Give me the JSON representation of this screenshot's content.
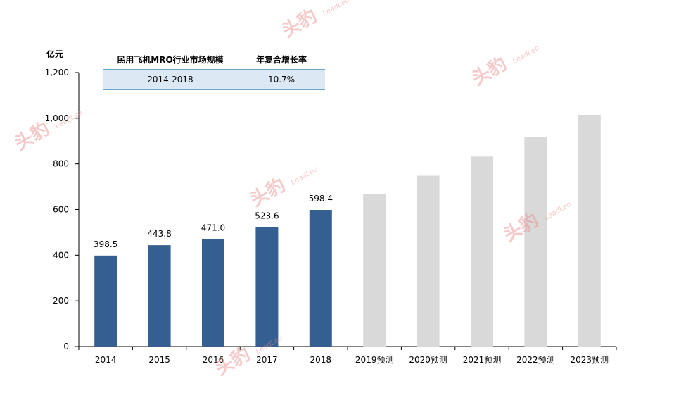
{
  "unit": "亿元",
  "table": {
    "header": [
      "民用飞机MRO行业市场规模",
      "年复合增长率"
    ],
    "row": [
      "2014-2018",
      "10.7%"
    ]
  },
  "watermark": {
    "logo_text": "头豹",
    "brand": "LeadLeo"
  },
  "chart_data": {
    "type": "bar",
    "categories": [
      "2014",
      "2015",
      "2016",
      "2017",
      "2018",
      "2019预测",
      "2020预测",
      "2021预测",
      "2022预测",
      "2023预测"
    ],
    "values": [
      398.5,
      443.8,
      471.0,
      523.6,
      598.4,
      668,
      748,
      832,
      919,
      1015
    ],
    "data_labels": [
      "398.5",
      "443.8",
      "471.0",
      "523.6",
      "598.4",
      "",
      "",
      "",
      "",
      ""
    ],
    "ylim": [
      0,
      1200
    ],
    "yticks": [
      0,
      200,
      400,
      600,
      800,
      1000,
      1200
    ],
    "ytick_labels": [
      "0",
      "200",
      "400",
      "600",
      "800",
      "1,000",
      "1,200"
    ],
    "colors": {
      "actual": "#355f91",
      "forecast": "#d9d9d9"
    },
    "grid": false
  }
}
